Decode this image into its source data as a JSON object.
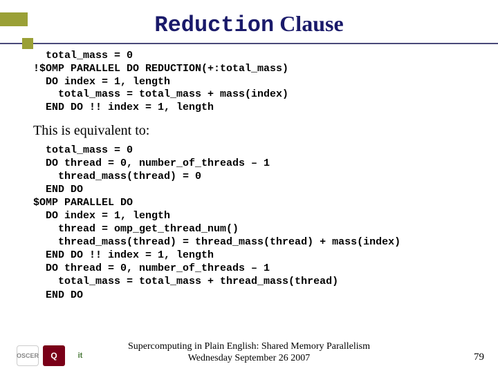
{
  "title": {
    "mono": "Reduction",
    "serif": " Clause"
  },
  "code1": "  total_mass = 0\n!$OMP PARALLEL DO REDUCTION(+:total_mass)\n  DO index = 1, length\n    total_mass = total_mass + mass(index)\n  END DO !! index = 1, length",
  "equiv": "This is equivalent to:",
  "code2": "  total_mass = 0\n  DO thread = 0, number_of_threads – 1\n    thread_mass(thread) = 0\n  END DO\n$OMP PARALLEL DO\n  DO index = 1, length\n    thread = omp_get_thread_num()\n    thread_mass(thread) = thread_mass(thread) + mass(index)\n  END DO !! index = 1, length\n  DO thread = 0, number_of_threads – 1\n    total_mass = total_mass + thread_mass(thread)\n  END DO",
  "footer": {
    "line1": "Supercomputing in Plain English: Shared Memory Parallelism",
    "line2": "Wednesday September 26 2007"
  },
  "pagenum": "79",
  "logos": {
    "oscer": "OSCER",
    "ou": "Q",
    "it": "it"
  },
  "colors": {
    "accent": "#9aa036",
    "rule": "#4a4a7a",
    "title": "#1a1a6a",
    "ou_bg": "#7a0018"
  }
}
